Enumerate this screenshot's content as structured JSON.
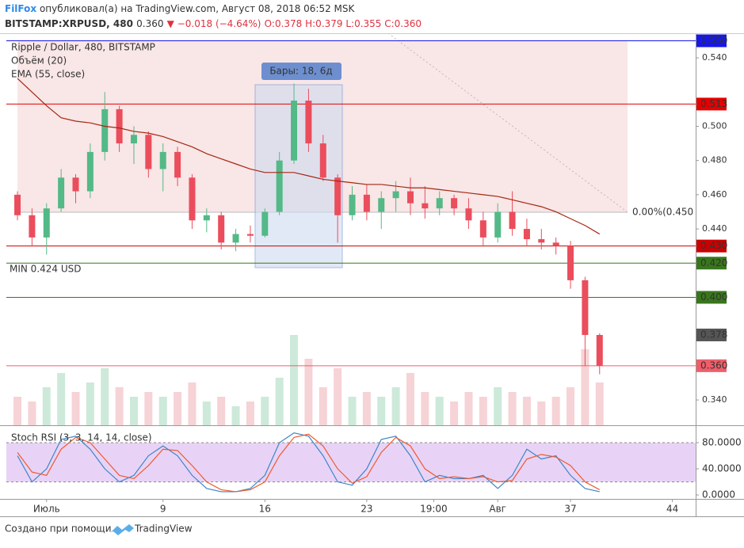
{
  "header": {
    "author": "FilFox",
    "published": "опубликовал(а) на TradingView.com, Август 08, 2018 06:52 MSK",
    "symbol": "BITSTAMP:XRPUSD, 480",
    "last": "0.360",
    "change": "▼ −0.018 (−4.64%)",
    "ohlc": "O:0.378 H:0.379 L:0.355 C:0.360"
  },
  "footer": {
    "created": "Создано при помощи",
    "brand": "TradingView"
  },
  "chart_data": {
    "type": "candlestick",
    "legend": [
      "Ripple / Dollar, 480, BITSTAMP",
      "Объём (20)",
      "EMA (55, close)"
    ],
    "range_label": "Бары: 18, 6д",
    "min_label": "MIN 0.424 USD",
    "fib_label": "0.00%(0.450",
    "x": [
      -1,
      0,
      1,
      2,
      3,
      4,
      5,
      6,
      7,
      8,
      9,
      10,
      11,
      12,
      13,
      14,
      15,
      16,
      17,
      18,
      19,
      20,
      21,
      22,
      23,
      24,
      25,
      26,
      27,
      28,
      29,
      30,
      31,
      32,
      33,
      34,
      35,
      36,
      37,
      38,
      39
    ],
    "open": [
      0.46,
      0.448,
      0.435,
      0.452,
      0.47,
      0.462,
      0.485,
      0.51,
      0.49,
      0.495,
      0.475,
      0.485,
      0.47,
      0.445,
      0.448,
      0.432,
      0.437,
      0.436,
      0.45,
      0.48,
      0.515,
      0.49,
      0.47,
      0.448,
      0.46,
      0.45,
      0.458,
      0.462,
      0.455,
      0.452,
      0.458,
      0.452,
      0.445,
      0.435,
      0.45,
      0.44,
      0.434,
      0.432,
      0.43,
      0.41,
      0.378
    ],
    "high": [
      0.462,
      0.452,
      0.455,
      0.475,
      0.472,
      0.49,
      0.52,
      0.512,
      0.5,
      0.497,
      0.49,
      0.488,
      0.472,
      0.452,
      0.45,
      0.44,
      0.442,
      0.452,
      0.485,
      0.525,
      0.522,
      0.495,
      0.472,
      0.465,
      0.466,
      0.462,
      0.468,
      0.47,
      0.465,
      0.462,
      0.46,
      0.458,
      0.45,
      0.455,
      0.462,
      0.446,
      0.44,
      0.435,
      0.433,
      0.412,
      0.379
    ],
    "low": [
      0.445,
      0.43,
      0.425,
      0.45,
      0.455,
      0.458,
      0.48,
      0.485,
      0.478,
      0.47,
      0.462,
      0.465,
      0.44,
      0.438,
      0.428,
      0.427,
      0.432,
      0.435,
      0.448,
      0.478,
      0.485,
      0.468,
      0.432,
      0.445,
      0.445,
      0.44,
      0.45,
      0.448,
      0.446,
      0.448,
      0.448,
      0.44,
      0.43,
      0.432,
      0.436,
      0.43,
      0.428,
      0.425,
      0.405,
      0.36,
      0.355
    ],
    "close": [
      0.448,
      0.435,
      0.452,
      0.47,
      0.462,
      0.485,
      0.51,
      0.49,
      0.495,
      0.475,
      0.485,
      0.47,
      0.445,
      0.448,
      0.432,
      0.437,
      0.436,
      0.45,
      0.48,
      0.515,
      0.49,
      0.47,
      0.448,
      0.46,
      0.45,
      0.458,
      0.462,
      0.455,
      0.452,
      0.458,
      0.452,
      0.445,
      0.435,
      0.45,
      0.44,
      0.434,
      0.432,
      0.43,
      0.41,
      0.378,
      0.36
    ],
    "ema": [
      0.528,
      0.52,
      0.512,
      0.505,
      0.503,
      0.502,
      0.5,
      0.499,
      0.497,
      0.496,
      0.494,
      0.491,
      0.488,
      0.484,
      0.481,
      0.478,
      0.475,
      0.473,
      0.473,
      0.473,
      0.471,
      0.469,
      0.468,
      0.467,
      0.466,
      0.466,
      0.465,
      0.464,
      0.464,
      0.463,
      0.462,
      0.461,
      0.46,
      0.459,
      0.457,
      0.455,
      0.453,
      0.45,
      0.446,
      0.442,
      0.437
    ],
    "ema_color": "#a52714",
    "volume": [
      30,
      25,
      40,
      55,
      35,
      45,
      60,
      40,
      30,
      35,
      30,
      35,
      45,
      25,
      30,
      20,
      25,
      30,
      50,
      95,
      70,
      40,
      60,
      30,
      35,
      30,
      40,
      55,
      35,
      30,
      25,
      35,
      30,
      40,
      35,
      30,
      25,
      30,
      40,
      80,
      45
    ],
    "volume_lim": [
      0,
      100
    ],
    "stoch": {
      "title": "Stoch RSI (3, 3, 14, 14, close)",
      "k": [
        60,
        20,
        40,
        85,
        90,
        70,
        40,
        20,
        30,
        60,
        75,
        60,
        30,
        10,
        5,
        5,
        10,
        30,
        80,
        95,
        90,
        60,
        20,
        15,
        40,
        85,
        90,
        60,
        20,
        30,
        25,
        25,
        30,
        10,
        30,
        70,
        55,
        60,
        30,
        10,
        5
      ],
      "d": [
        65,
        35,
        30,
        70,
        88,
        80,
        55,
        30,
        25,
        45,
        70,
        68,
        45,
        20,
        8,
        5,
        8,
        20,
        60,
        88,
        93,
        75,
        40,
        18,
        28,
        65,
        88,
        75,
        40,
        25,
        28,
        25,
        28,
        20,
        22,
        55,
        62,
        58,
        45,
        20,
        8
      ],
      "k_color": "#3d85c6",
      "d_color": "#f1592a",
      "ylim": [
        -6,
        103
      ],
      "band": [
        20,
        80
      ],
      "yticks": [
        {
          "value": 80,
          "label": "80.0000"
        },
        {
          "value": 40,
          "label": "40.0000"
        },
        {
          "value": 0,
          "label": "0.0000"
        }
      ]
    },
    "up_color": "#53b987",
    "down_color": "#eb4d5c",
    "xlim": [
      -2.2,
      45.6
    ],
    "xticks": [
      {
        "value": 1,
        "label": "Июль"
      },
      9,
      16,
      23,
      {
        "value": 27.6,
        "label": "19:00"
      },
      {
        "value": 32,
        "label": "Авг"
      },
      37,
      44
    ],
    "ylim": [
      0.3252,
      0.5544
    ],
    "yticks": [
      {
        "value": 0.54,
        "label": "0.540"
      },
      {
        "value": 0.5,
        "label": "0.500"
      },
      {
        "value": 0.48,
        "label": "0.480"
      },
      {
        "value": 0.46,
        "label": "0.460"
      },
      {
        "value": 0.44,
        "label": "0.440"
      },
      {
        "value": 0.34,
        "label": "0.340"
      }
    ],
    "levels": [
      {
        "value": 0.55,
        "label": "0.550",
        "color": "#1717e6",
        "line": true
      },
      {
        "value": 0.513,
        "label": "0.513",
        "color": "#e60000",
        "line": true
      },
      {
        "value": 0.43,
        "label": "0.430",
        "color": "#cc0000",
        "line": true
      },
      {
        "value": 0.42,
        "label": "0.420",
        "color": "#38761d",
        "line": true
      },
      {
        "value": 0.4,
        "label": "0.400",
        "color": "#38761d",
        "line": true
      },
      {
        "value": 0.378,
        "label": "0.378",
        "color": "#555555",
        "line": false
      },
      {
        "value": 0.36,
        "label": "0.360",
        "color": "#f05d6a",
        "line": true
      }
    ]
  }
}
